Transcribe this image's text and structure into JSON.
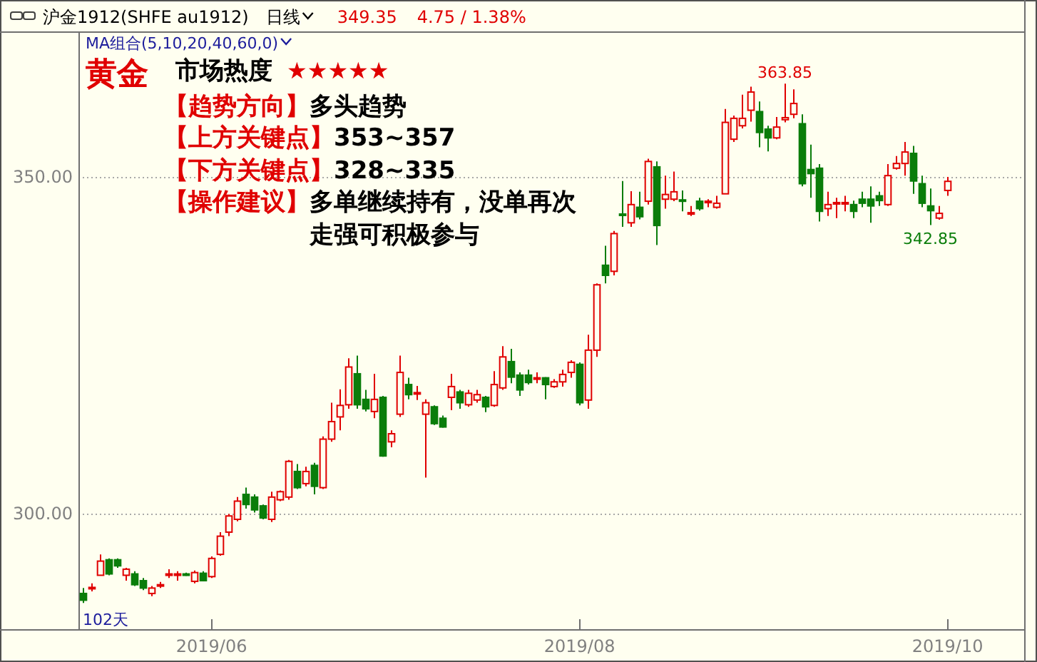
{
  "chart_data": {
    "type": "candlestick",
    "title": "沪金1912(SHFE au1912)",
    "categories": [
      null,
      null,
      null,
      null,
      null,
      null,
      null,
      null,
      null,
      null,
      null,
      null,
      null,
      null,
      null,
      "2019/06",
      null,
      null,
      null,
      null,
      null,
      null,
      null,
      null,
      null,
      null,
      null,
      null,
      null,
      null,
      null,
      null,
      null,
      null,
      null,
      null,
      null,
      null,
      null,
      null,
      null,
      null,
      null,
      null,
      null,
      null,
      null,
      null,
      null,
      null,
      null,
      null,
      null,
      null,
      null,
      null,
      null,
      null,
      "2019/08",
      null,
      null,
      null,
      null,
      null,
      null,
      null,
      null,
      null,
      null,
      null,
      null,
      null,
      null,
      null,
      null,
      null,
      null,
      null,
      null,
      null,
      null,
      null,
      null,
      null,
      null,
      null,
      null,
      null,
      null,
      null,
      null,
      null,
      null,
      null,
      null,
      null,
      null,
      null,
      null,
      null,
      null,
      "2019/10"
    ],
    "ohlc": [
      [
        288.2,
        289.0,
        286.8,
        287.2
      ],
      [
        289.0,
        289.7,
        288.5,
        289.1
      ],
      [
        290.9,
        294.0,
        290.9,
        293.0
      ],
      [
        293.2,
        293.4,
        290.9,
        291.1
      ],
      [
        293.2,
        293.4,
        292.0,
        292.3
      ],
      [
        290.9,
        292.0,
        290.1,
        291.8
      ],
      [
        291.1,
        291.5,
        289.3,
        289.5
      ],
      [
        290.1,
        290.5,
        288.7,
        289.0
      ],
      [
        288.2,
        289.3,
        287.8,
        289.0
      ],
      [
        289.4,
        289.9,
        289.0,
        289.5
      ],
      [
        291.0,
        291.8,
        290.5,
        291.1
      ],
      [
        291.0,
        291.5,
        290.1,
        291.1
      ],
      [
        291.1,
        291.3,
        290.8,
        291.0
      ],
      [
        290.0,
        291.6,
        289.7,
        291.3
      ],
      [
        291.2,
        291.5,
        290.0,
        290.1
      ],
      [
        290.7,
        293.7,
        290.5,
        293.4
      ],
      [
        294.0,
        297.3,
        293.8,
        296.7
      ],
      [
        297.3,
        300.0,
        296.7,
        299.7
      ],
      [
        299.2,
        302.5,
        298.9,
        301.9
      ],
      [
        302.9,
        303.9,
        300.8,
        301.4
      ],
      [
        302.5,
        302.9,
        300.2,
        300.6
      ],
      [
        301.2,
        301.4,
        299.2,
        299.4
      ],
      [
        299.2,
        303.3,
        298.8,
        302.5
      ],
      [
        302.1,
        303.5,
        301.9,
        303.3
      ],
      [
        302.5,
        308.0,
        302.1,
        307.8
      ],
      [
        306.3,
        307.4,
        303.7,
        303.9
      ],
      [
        304.5,
        307.0,
        304.1,
        306.3
      ],
      [
        307.2,
        307.6,
        302.9,
        304.1
      ],
      [
        303.9,
        311.5,
        303.7,
        311.1
      ],
      [
        311.1,
        316.5,
        310.7,
        313.7
      ],
      [
        314.4,
        318.5,
        312.4,
        316.1
      ],
      [
        316.2,
        323.1,
        315.6,
        321.8
      ],
      [
        320.8,
        323.5,
        315.6,
        316.2
      ],
      [
        317.0,
        318.4,
        315.2,
        315.6
      ],
      [
        315.2,
        320.8,
        314.2,
        317.0
      ],
      [
        317.3,
        317.5,
        308.5,
        308.6
      ],
      [
        310.7,
        312.4,
        309.9,
        311.9
      ],
      [
        314.8,
        323.5,
        314.4,
        321.0
      ],
      [
        319.2,
        320.2,
        317.0,
        317.7
      ],
      [
        317.9,
        319.0,
        316.9,
        318.0
      ],
      [
        314.8,
        317.0,
        305.4,
        316.5
      ],
      [
        315.9,
        316.1,
        313.2,
        313.4
      ],
      [
        314.2,
        314.6,
        312.8,
        312.9
      ],
      [
        317.3,
        320.8,
        315.4,
        318.9
      ],
      [
        318.1,
        318.4,
        315.6,
        316.5
      ],
      [
        316.2,
        318.4,
        315.9,
        317.9
      ],
      [
        316.9,
        318.4,
        316.5,
        317.7
      ],
      [
        317.3,
        317.5,
        315.1,
        315.9
      ],
      [
        316.1,
        321.2,
        315.9,
        319.2
      ],
      [
        318.7,
        324.9,
        318.4,
        323.3
      ],
      [
        322.6,
        324.5,
        319.4,
        320.3
      ],
      [
        320.6,
        321.0,
        317.5,
        318.4
      ],
      [
        320.6,
        321.4,
        319.2,
        319.5
      ],
      [
        320.1,
        321.0,
        319.4,
        320.2
      ],
      [
        320.2,
        320.3,
        317.0,
        319.2
      ],
      [
        318.9,
        320.0,
        318.7,
        319.6
      ],
      [
        319.6,
        321.4,
        318.9,
        320.7
      ],
      [
        321.0,
        322.8,
        320.2,
        322.5
      ],
      [
        322.2,
        322.5,
        316.1,
        316.5
      ],
      [
        316.9,
        326.6,
        315.6,
        324.3
      ],
      [
        324.3,
        334.2,
        323.3,
        334.0
      ],
      [
        336.9,
        339.8,
        334.2,
        335.4
      ],
      [
        336.0,
        342.0,
        335.4,
        341.6
      ],
      [
        344.5,
        349.4,
        342.6,
        344.4
      ],
      [
        343.2,
        347.9,
        342.6,
        345.9
      ],
      [
        345.5,
        347.8,
        343.7,
        344.1
      ],
      [
        346.4,
        352.7,
        345.9,
        352.3
      ],
      [
        351.5,
        352.3,
        339.9,
        342.8
      ],
      [
        346.7,
        350.2,
        345.3,
        347.4
      ],
      [
        346.7,
        350.8,
        346.4,
        347.8
      ],
      [
        346.6,
        348.0,
        344.9,
        346.5
      ],
      [
        344.5,
        345.7,
        344.2,
        344.7
      ],
      [
        346.4,
        346.9,
        345.0,
        345.3
      ],
      [
        346.2,
        346.7,
        345.5,
        346.4
      ],
      [
        345.5,
        347.2,
        345.3,
        346.1
      ],
      [
        347.5,
        360.1,
        347.5,
        358.1
      ],
      [
        355.6,
        359.1,
        355.2,
        358.7
      ],
      [
        357.6,
        362.2,
        357.2,
        358.7
      ],
      [
        359.9,
        363.4,
        358.2,
        362.6
      ],
      [
        359.7,
        361.2,
        354.4,
        356.6
      ],
      [
        357.1,
        357.6,
        353.8,
        355.8
      ],
      [
        355.8,
        358.9,
        355.6,
        357.4
      ],
      [
        358.5,
        363.85,
        358.1,
        358.8
      ],
      [
        359.3,
        363.0,
        358.7,
        360.9
      ],
      [
        357.9,
        359.3,
        348.6,
        349.0
      ],
      [
        351.1,
        354.8,
        346.9,
        350.5
      ],
      [
        351.3,
        351.9,
        343.4,
        344.9
      ],
      [
        345.3,
        347.8,
        344.2,
        345.9
      ],
      [
        346.0,
        346.9,
        343.9,
        346.2
      ],
      [
        346.0,
        347.2,
        344.9,
        346.2
      ],
      [
        345.9,
        346.5,
        343.9,
        344.9
      ],
      [
        346.7,
        347.8,
        345.5,
        346.1
      ],
      [
        346.7,
        348.6,
        343.2,
        345.7
      ],
      [
        347.2,
        347.8,
        345.7,
        346.5
      ],
      [
        345.9,
        351.9,
        345.7,
        350.2
      ],
      [
        351.3,
        353.1,
        351.1,
        352.0
      ],
      [
        352.0,
        355.2,
        350.2,
        353.7
      ],
      [
        353.5,
        354.6,
        347.5,
        349.4
      ],
      [
        349.0,
        350.2,
        345.5,
        346.1
      ],
      [
        345.7,
        348.3,
        342.85,
        345.0
      ],
      [
        343.9,
        345.7,
        343.65,
        344.6
      ],
      [
        348.0,
        350.0,
        347.2,
        349.35
      ]
    ],
    "ylim": [
      282.9,
      371.6
    ],
    "yticks": [
      {
        "value": 300,
        "label": "300.00"
      },
      {
        "value": 350,
        "label": "350.00"
      }
    ],
    "grid": "y",
    "annotations": [
      "日线",
      "349.35",
      "4.75 / 1.38%",
      "MA组合(5,10,20,40,60,0)",
      "黄金",
      "市场热度",
      "★★★★★",
      "【趋势方向】",
      "多头趋势",
      "【上方关键点】",
      "353~357",
      "【下方关键点】",
      "328~335",
      "【操作建议】",
      "多单继续持有，没单再次",
      "走强可积极参与",
      "102天",
      {
        "text": "363.85",
        "y": 363.85
      },
      {
        "text": "342.85",
        "y": 342.85
      }
    ]
  }
}
